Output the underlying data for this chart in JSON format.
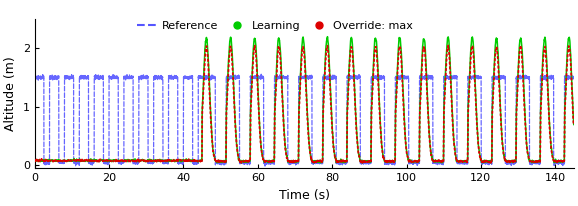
{
  "xlabel": "Time (s)",
  "ylabel": "Altitude (m)",
  "xlim": [
    0,
    145
  ],
  "ylim": [
    -0.05,
    2.5
  ],
  "yticks": [
    0,
    1,
    2
  ],
  "xticks": [
    0,
    20,
    40,
    60,
    80,
    100,
    120,
    140
  ],
  "legend_labels": [
    "Reference",
    "Learning",
    "Override: max"
  ],
  "ref_color": "#5555ff",
  "learn_color": "#00cc00",
  "override_color": "#dd0000",
  "dt": 0.02,
  "t_end": 145,
  "ref_low": 0.05,
  "ref_high": 1.5,
  "transition_time": 45.0,
  "early_period": 4.0,
  "late_period": 6.5,
  "overshoot_scale": 1.45,
  "figwidth": 5.78,
  "figheight": 2.06,
  "dpi": 100
}
